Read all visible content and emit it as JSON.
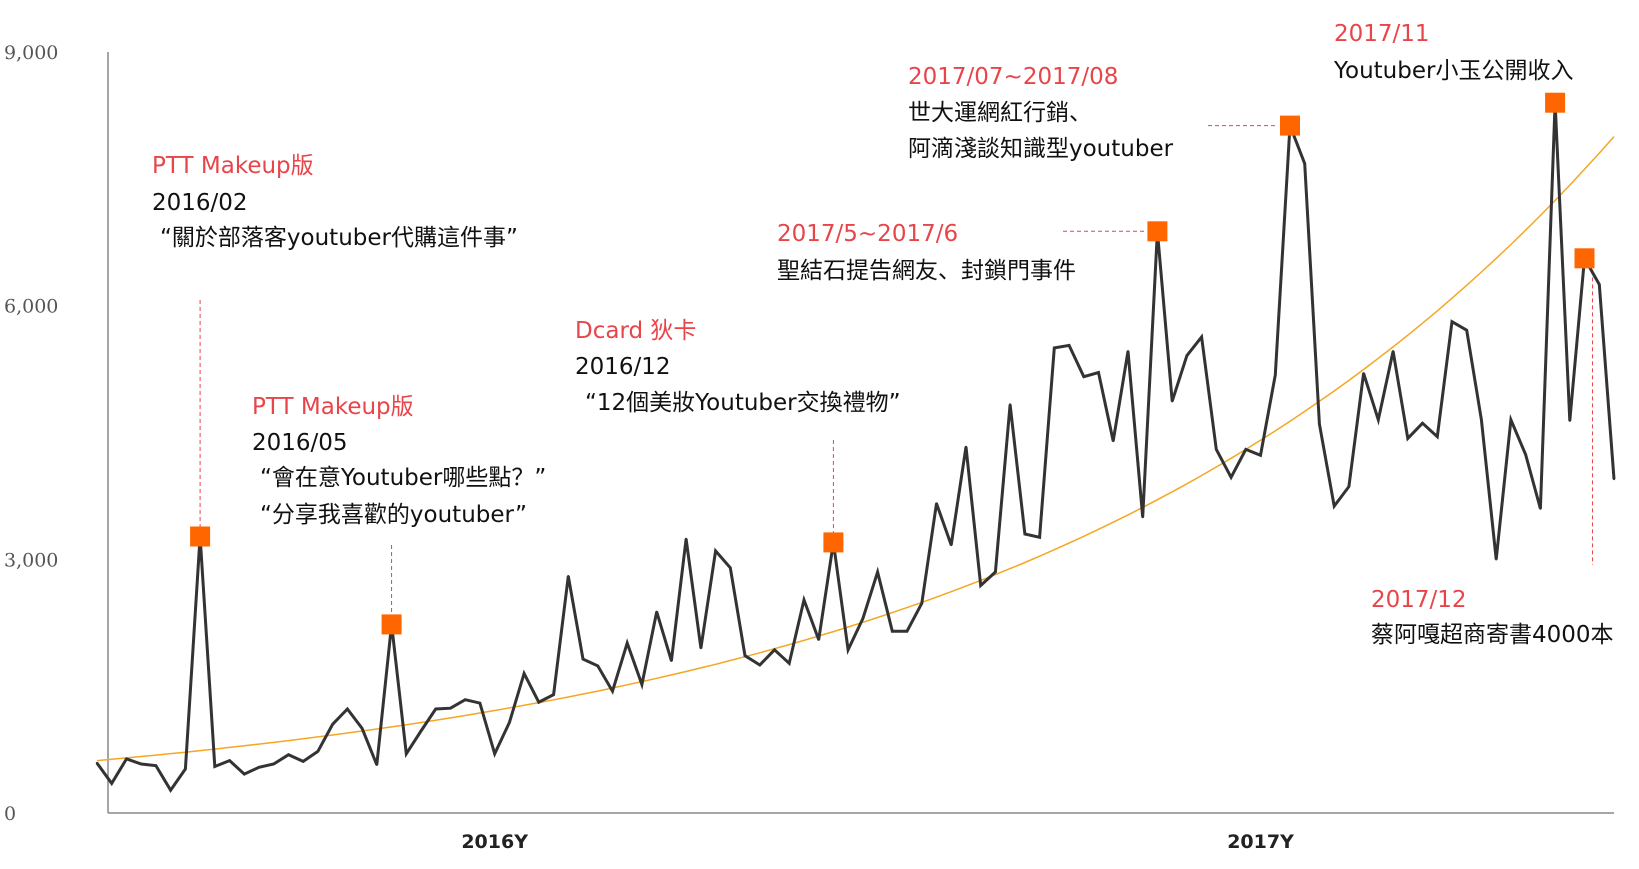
{
  "chart_data": {
    "type": "line",
    "title": "",
    "xlabel": "",
    "ylabel": "",
    "ylim": [
      0,
      9000
    ],
    "yticks": [
      {
        "value": 0,
        "label": "0"
      },
      {
        "value": 3000,
        "label": "3,000"
      },
      {
        "value": 6000,
        "label": "6,000"
      },
      {
        "value": 9000,
        "label": "9,000"
      }
    ],
    "xticks": [
      {
        "index": 27,
        "label": "2016Y"
      },
      {
        "index": 79,
        "label": "2017Y"
      }
    ],
    "grid": false,
    "colors": {
      "series": "#333333",
      "trend": "#f5a623",
      "marker": "#ff6600",
      "guide": "#e8454a",
      "axis": "#888888"
    },
    "series": [
      {
        "values": [
          590,
          350,
          640,
          580,
          560,
          270,
          520,
          3270,
          550,
          620,
          460,
          540,
          580,
          690,
          610,
          730,
          1050,
          1230,
          1000,
          570,
          2230,
          700,
          970,
          1230,
          1240,
          1340,
          1300,
          700,
          1070,
          1650,
          1310,
          1400,
          2800,
          1820,
          1740,
          1440,
          2010,
          1520,
          2380,
          1800,
          3240,
          1950,
          3100,
          2900,
          1860,
          1750,
          1930,
          1770,
          2520,
          2050,
          3200,
          1930,
          2300,
          2850,
          2150,
          2150,
          2480,
          3660,
          3170,
          4330,
          2690,
          2850,
          4830,
          3300,
          3260,
          5500,
          5530,
          5160,
          5210,
          4400,
          5460,
          3500,
          6880,
          4870,
          5410,
          5630,
          4300,
          3970,
          4300,
          4230,
          5180,
          8130,
          7680,
          4600,
          3630,
          3860,
          5200,
          4650,
          5460,
          4430,
          4610,
          4450,
          5810,
          5710,
          4650,
          3000,
          4650,
          4240,
          3600,
          8400,
          4640,
          6560,
          6250,
          3950
        ]
      }
    ],
    "trend": {
      "type": "exponential",
      "start_value": 620,
      "end_value": 8000
    },
    "highlights": [
      {
        "index": 7,
        "value": 3270
      },
      {
        "index": 20,
        "value": 2230
      },
      {
        "index": 50,
        "value": 3200
      },
      {
        "index": 72,
        "value": 6880
      },
      {
        "index": 81,
        "value": 8130
      },
      {
        "index": 99,
        "value": 8400
      },
      {
        "index": 101,
        "value": 6560
      }
    ],
    "annotations": [
      {
        "head": "PTT Makeup版",
        "lines": [
          "2016/02",
          "“關於部落客youtuber代購這件事”"
        ]
      },
      {
        "head": "PTT Makeup版",
        "lines": [
          "2016/05",
          "“會在意Youtuber哪些點？”",
          "“分享我喜歡的youtuber”"
        ]
      },
      {
        "head": "Dcard 狄卡",
        "lines": [
          "2016/12",
          "“12個美妝Youtuber交換禮物”"
        ]
      },
      {
        "head": "2017/5~2017/6",
        "lines": [
          "聖結石提告網友、封鎖門事件"
        ]
      },
      {
        "head": "2017/07~2017/08",
        "lines": [
          "世大運網紅行銷、",
          "阿滴淺談知識型youtuber"
        ]
      },
      {
        "head": "2017/11",
        "lines": [
          "Youtuber小玉公開收入"
        ]
      },
      {
        "head": "2017/12",
        "lines": [
          "蔡阿嘎超商寄書4000本"
        ]
      }
    ]
  }
}
